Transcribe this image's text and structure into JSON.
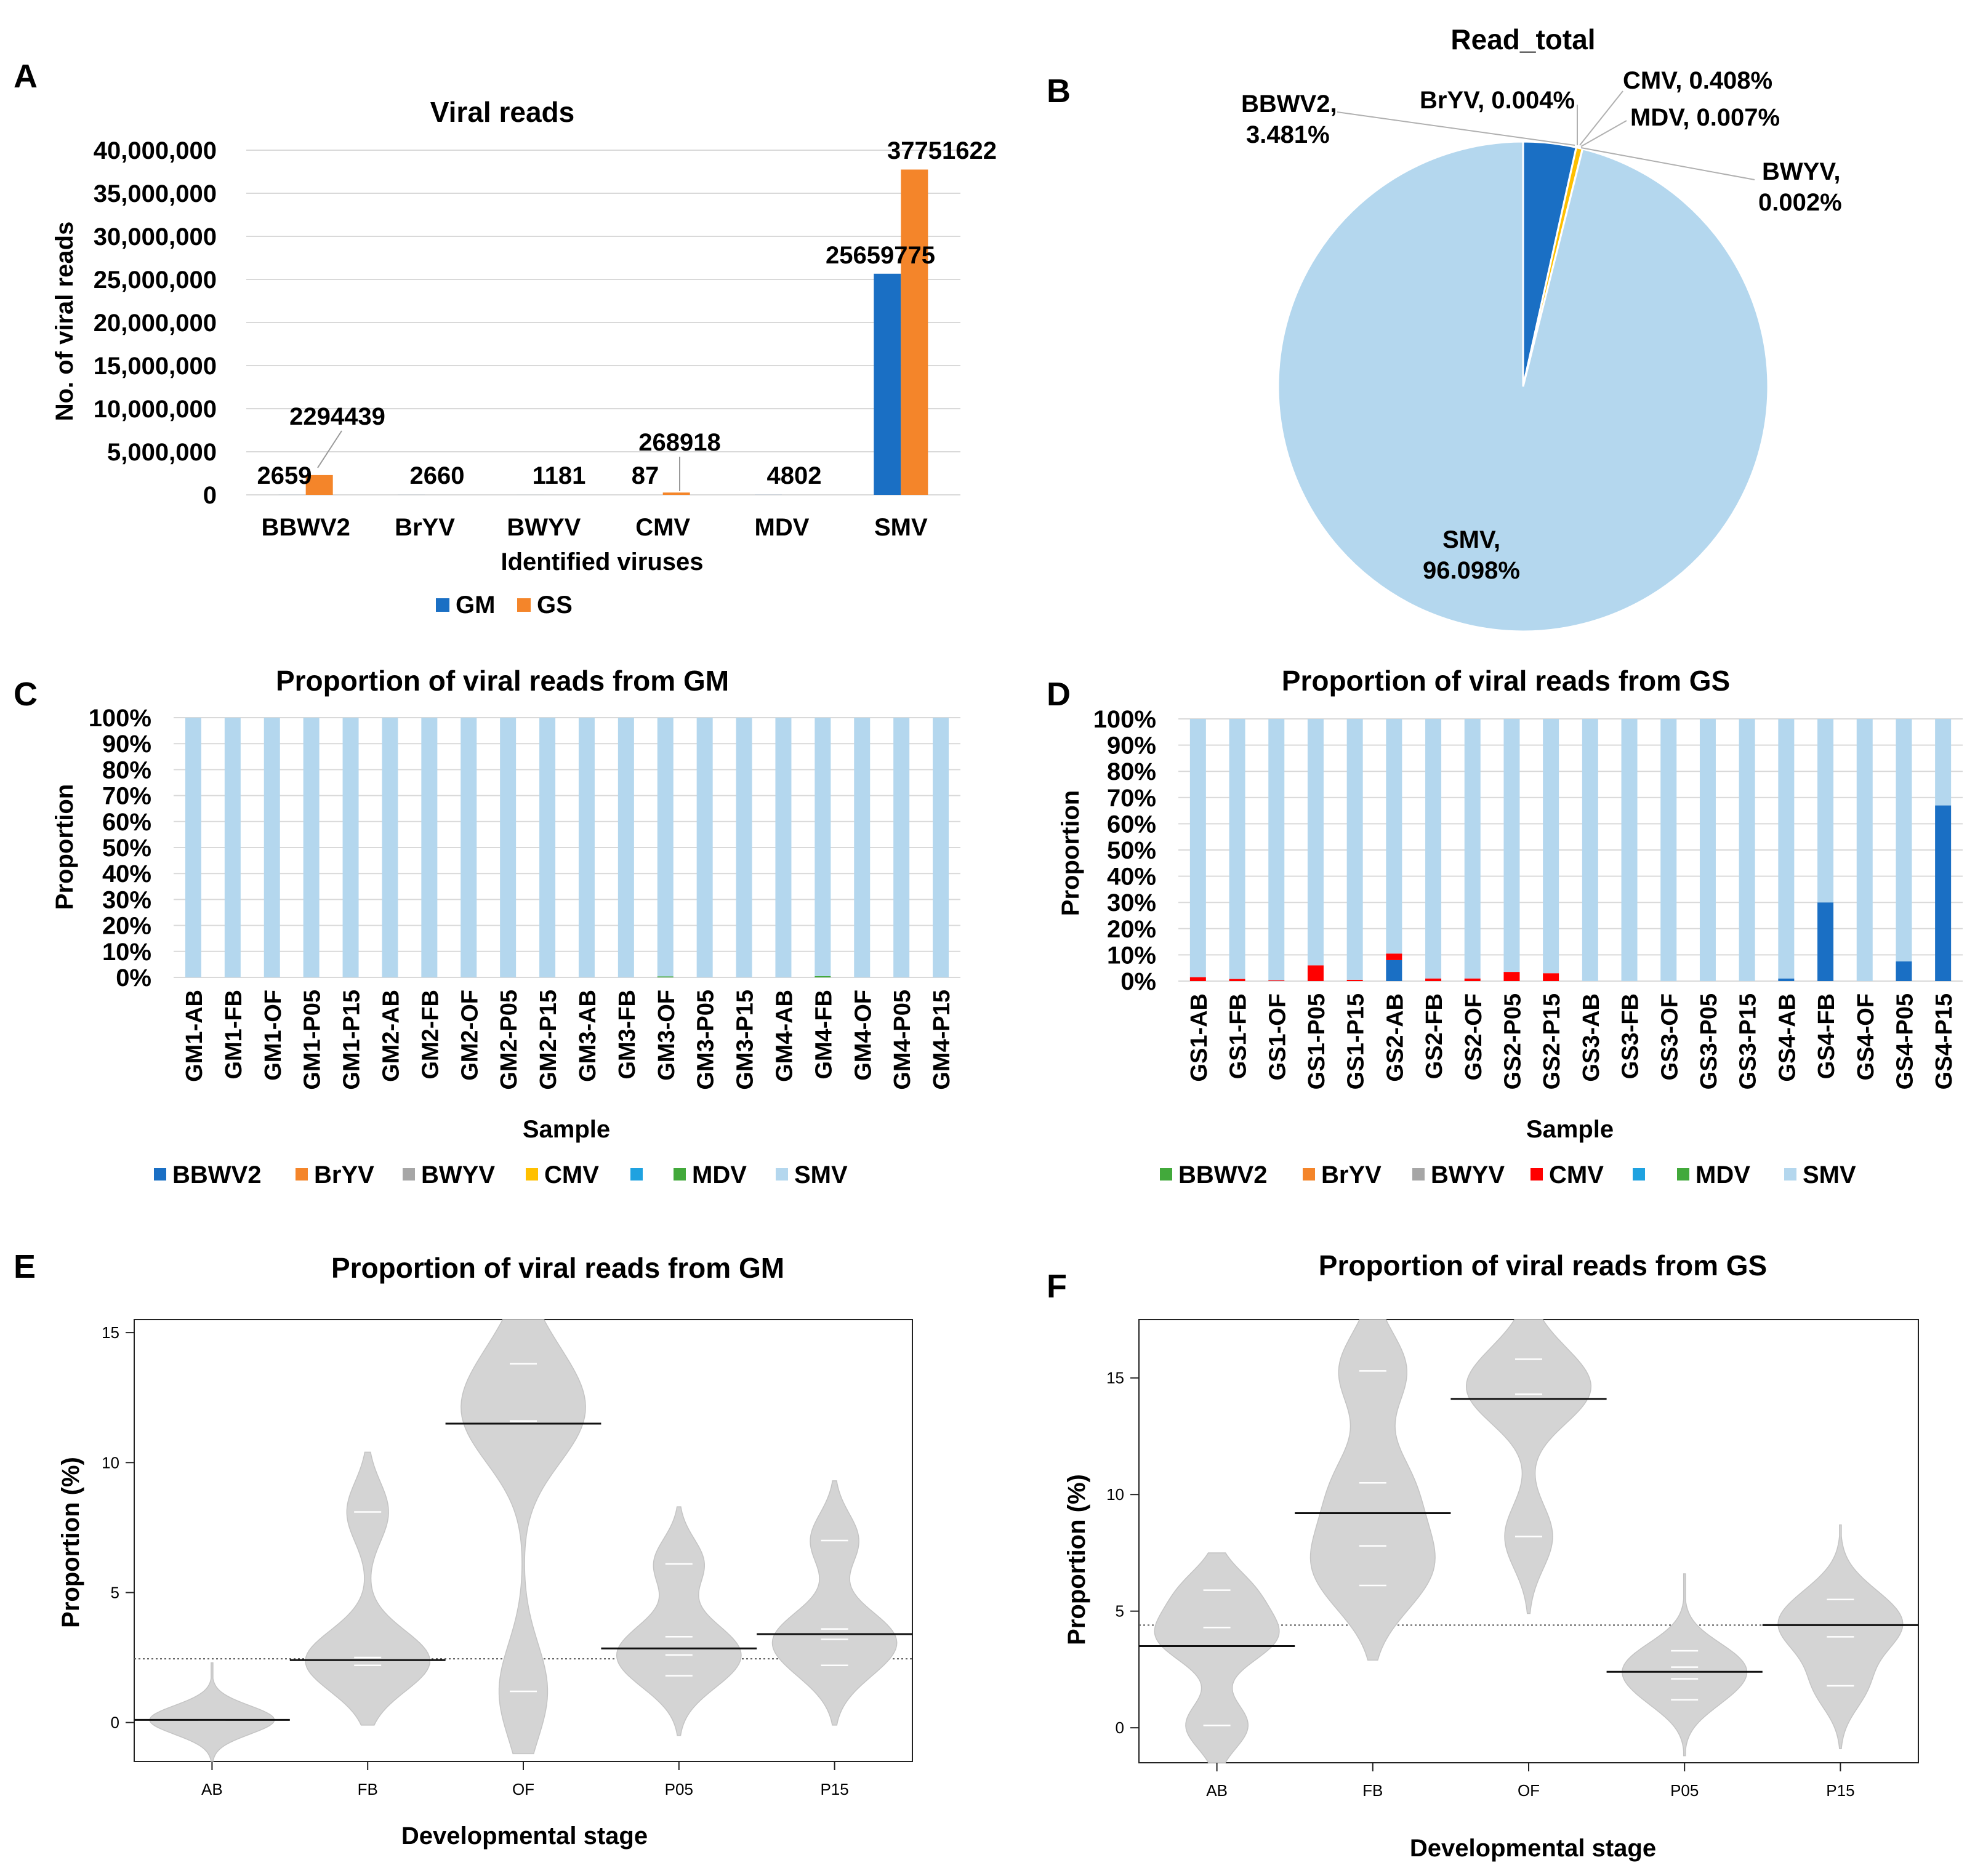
{
  "colors": {
    "GM": "#1a6fc4",
    "GS": "#f4852a",
    "BBWV2": "#1a6fc4",
    "BrYV": "#f4852a",
    "BWYV": "#a6a6a6",
    "CMV": "#ffc000",
    "CMV_GS": "#ff0000",
    "MDV": "#42a93b",
    "SMV": "#b4d7ee",
    "blank": "#1fa2e0",
    "violin": "#d4d4d4"
  },
  "chart_data": [
    {
      "panel": "A",
      "type": "bar",
      "title": "Viral reads",
      "xlabel": "Identified viruses",
      "ylabel": "No. of viral reads",
      "ylim": [
        0,
        40000000
      ],
      "yticks": [
        "0",
        "5,000,000",
        "10,000,000",
        "15,000,000",
        "20,000,000",
        "25,000,000",
        "30,000,000",
        "35,000,000",
        "40,000,000"
      ],
      "categories": [
        "BBWV2",
        "BrYV",
        "BWYV",
        "CMV",
        "MDV",
        "SMV"
      ],
      "series": [
        {
          "name": "GM",
          "values": [
            2659,
            2660,
            1181,
            87,
            4802,
            25659775
          ]
        },
        {
          "name": "GS",
          "values": [
            2294439,
            0,
            0,
            268918,
            0,
            37751622
          ]
        }
      ],
      "labels": [
        "2659",
        "2294439",
        "2660",
        "1181",
        "87",
        "268918",
        "4802",
        "25659775",
        "37751622"
      ],
      "legend": [
        "GM",
        "GS"
      ]
    },
    {
      "panel": "B",
      "type": "pie",
      "title": "Read_total",
      "slices": [
        {
          "name": "BBWV2",
          "value": 3.481,
          "label_a": "BBWV2,",
          "label_b": "3.481%"
        },
        {
          "name": "BrYV",
          "value": 0.004,
          "label_a": "BrYV, 0.004%",
          "label_b": ""
        },
        {
          "name": "CMV",
          "value": 0.408,
          "label_a": "CMV, 0.408%",
          "label_b": ""
        },
        {
          "name": "MDV",
          "value": 0.007,
          "label_a": "MDV, 0.007%",
          "label_b": ""
        },
        {
          "name": "BWYV",
          "value": 0.002,
          "label_a": "BWYV,",
          "label_b": "0.002%"
        },
        {
          "name": "SMV",
          "value": 96.098,
          "label_a": "SMV,",
          "label_b": "96.098%"
        }
      ]
    },
    {
      "panel": "C",
      "type": "bar",
      "stacked": true,
      "title": "Proportion of viral reads from GM",
      "xlabel": "Sample",
      "ylabel": "Proportion",
      "ylim": [
        0,
        100
      ],
      "yticks": [
        "0%",
        "10%",
        "20%",
        "30%",
        "40%",
        "50%",
        "60%",
        "70%",
        "80%",
        "90%",
        "100%"
      ],
      "categories": [
        "GM1-AB",
        "GM1-FB",
        "GM1-OF",
        "GM1-P05",
        "GM1-P15",
        "GM2-AB",
        "GM2-FB",
        "GM2-OF",
        "GM2-P05",
        "GM2-P15",
        "GM3-AB",
        "GM3-FB",
        "GM3-OF",
        "GM3-P05",
        "GM3-P15",
        "GM4-AB",
        "GM4-FB",
        "GM4-OF",
        "GM4-P05",
        "GM4-P15"
      ],
      "series": [
        {
          "name": "MDV",
          "values": [
            0,
            0,
            0,
            0,
            0,
            0,
            0,
            0,
            0,
            0,
            0,
            0,
            0.4,
            0,
            0,
            0,
            0.5,
            0,
            0,
            0
          ]
        },
        {
          "name": "SMV",
          "values": [
            100,
            100,
            100,
            100,
            100,
            100,
            100,
            100,
            100,
            100,
            100,
            100,
            99.6,
            100,
            100,
            100,
            99.5,
            100,
            100,
            100
          ]
        }
      ],
      "legend": [
        "BBWV2",
        "BrYV",
        "BWYV",
        "CMV",
        "",
        "MDV",
        "SMV"
      ]
    },
    {
      "panel": "D",
      "type": "bar",
      "stacked": true,
      "title": "Proportion of viral reads from GS",
      "xlabel": "Sample",
      "ylabel": "Proportion",
      "ylim": [
        0,
        100
      ],
      "yticks": [
        "0%",
        "10%",
        "20%",
        "30%",
        "40%",
        "50%",
        "60%",
        "70%",
        "80%",
        "90%",
        "100%"
      ],
      "categories": [
        "GS1-AB",
        "GS1-FB",
        "GS1-OF",
        "GS1-P05",
        "GS1-P15",
        "GS2-AB",
        "GS2-FB",
        "GS2-OF",
        "GS2-P05",
        "GS2-P15",
        "GS3-AB",
        "GS3-FB",
        "GS3-OF",
        "GS3-P05",
        "GS3-P15",
        "GS4-AB",
        "GS4-FB",
        "GS4-OF",
        "GS4-P05",
        "GS4-P15"
      ],
      "series": [
        {
          "name": "BBWV2",
          "values": [
            0,
            0,
            0,
            0,
            0,
            8,
            0,
            0,
            0,
            0,
            0,
            0,
            0,
            0,
            0,
            1,
            30,
            0,
            7.5,
            67
          ]
        },
        {
          "name": "CMV",
          "values": [
            1.5,
            0.8,
            0.3,
            6,
            0.5,
            2.5,
            1,
            1,
            3.5,
            3,
            0,
            0,
            0,
            0,
            0,
            0,
            0,
            0,
            0,
            0
          ]
        },
        {
          "name": "SMV",
          "values": [
            98.5,
            99.2,
            99.7,
            94,
            99.5,
            89.5,
            99,
            99,
            96.5,
            97,
            100,
            100,
            100,
            100,
            100,
            99,
            70,
            100,
            92.5,
            33
          ]
        }
      ],
      "legend": [
        "BBWV2",
        "BrYV",
        "BWYV",
        "CMV",
        "",
        "MDV",
        "SMV"
      ]
    },
    {
      "panel": "E",
      "type": "violin",
      "title": "Proportion of viral reads from GM",
      "xlabel": "Developmental stage",
      "ylabel": "Proportion (%)",
      "ylim": [
        -1.5,
        15.5
      ],
      "yticks": [
        0,
        5,
        10,
        15
      ],
      "categories": [
        "AB",
        "FB",
        "OF",
        "P05",
        "P15"
      ],
      "means": [
        0.1,
        2.4,
        11.5,
        2.85,
        3.4
      ],
      "samples": [
        [
          0.1,
          0.1,
          0.1,
          0.1
        ],
        [
          2.2,
          2.4,
          2.5,
          8.1
        ],
        [
          1.2,
          11.5,
          11.6,
          13.8
        ],
        [
          1.8,
          2.6,
          3.3,
          6.1
        ],
        [
          2.2,
          3.2,
          3.6,
          7.0
        ]
      ],
      "ranges": [
        [
          -1.5,
          2.3
        ],
        [
          -0.1,
          10.4
        ],
        [
          -1.2,
          15.5
        ],
        [
          -0.5,
          8.3
        ],
        [
          -0.1,
          9.3
        ]
      ],
      "overall_mean": 2.45
    },
    {
      "panel": "F",
      "type": "violin",
      "title": "Proportion of viral reads from GS",
      "xlabel": "Developmental stage",
      "ylabel": "Proportion (%)",
      "ylim": [
        -1.5,
        17.5
      ],
      "yticks": [
        0,
        5,
        10,
        15
      ],
      "categories": [
        "AB",
        "FB",
        "OF",
        "P05",
        "P15"
      ],
      "means": [
        3.5,
        9.2,
        14.1,
        2.4,
        4.4
      ],
      "samples": [
        [
          0.1,
          3.5,
          4.3,
          5.9
        ],
        [
          6.1,
          7.8,
          10.5,
          15.3
        ],
        [
          8.2,
          14.1,
          14.3,
          15.8
        ],
        [
          1.2,
          2.1,
          2.6,
          3.3
        ],
        [
          1.8,
          3.9,
          4.4,
          5.5
        ]
      ],
      "ranges": [
        [
          -1.5,
          7.5
        ],
        [
          2.9,
          17.5
        ],
        [
          4.9,
          17.5
        ],
        [
          -1.2,
          6.6
        ],
        [
          -0.9,
          8.7
        ]
      ],
      "overall_mean": 4.4
    }
  ],
  "panel_letters": [
    "A",
    "B",
    "C",
    "D",
    "E",
    "F"
  ]
}
